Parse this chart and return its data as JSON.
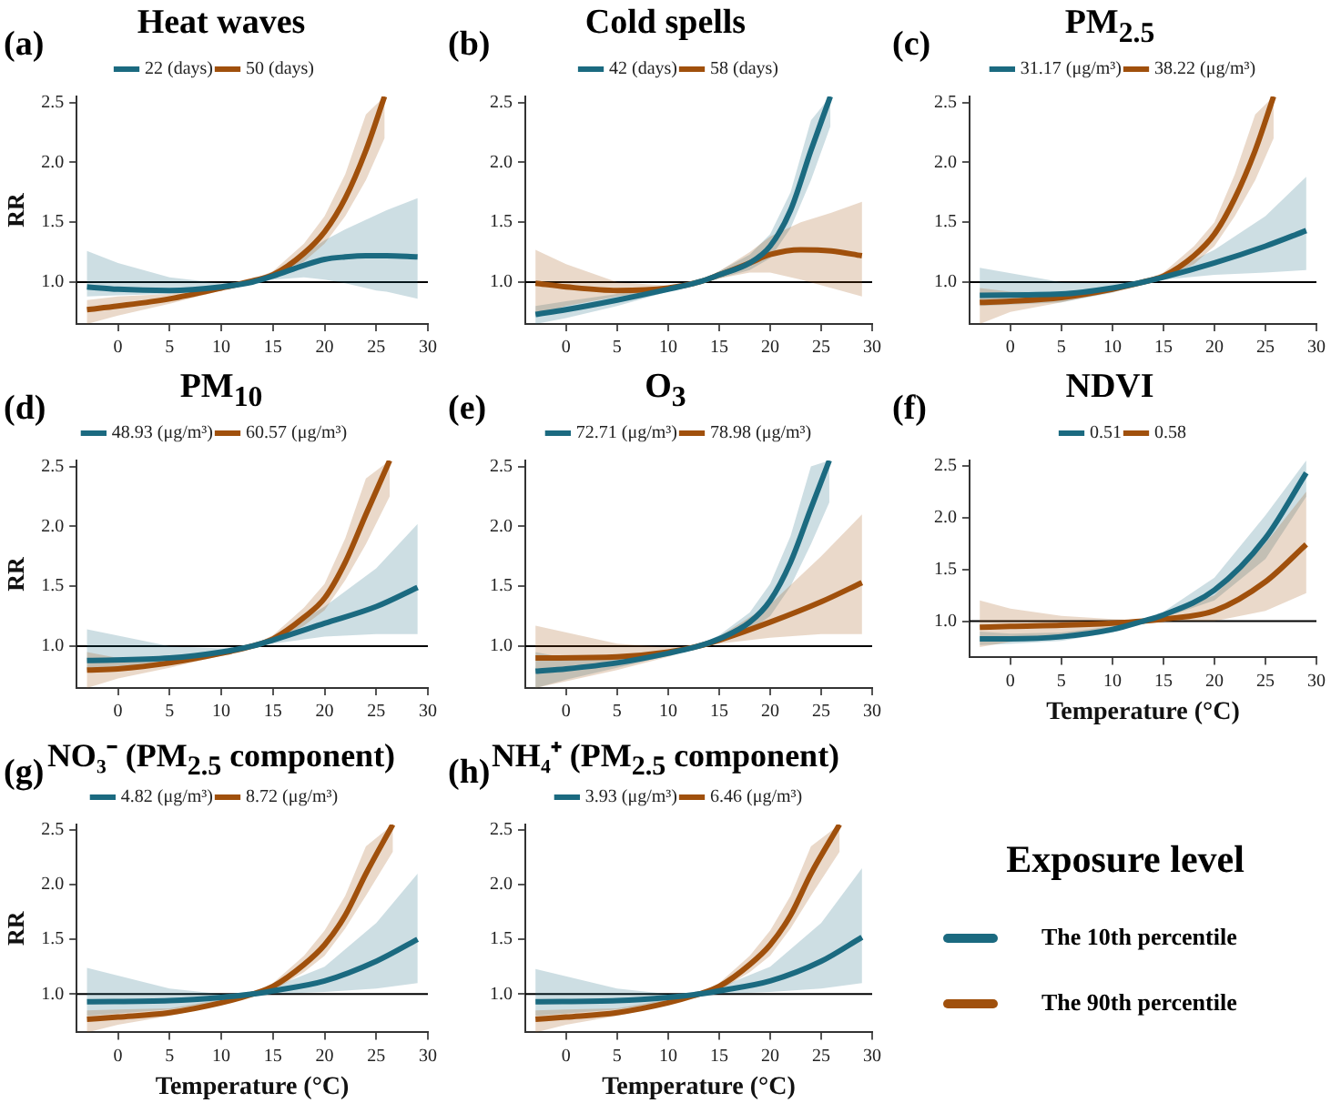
{
  "chart_data": [
    {
      "type": "line",
      "title": "Heat waves",
      "annotations": [
        "(a)"
      ],
      "ylabel": "RR",
      "xlim": [
        -4,
        30
      ],
      "xticks": [
        0,
        5,
        10,
        15,
        20,
        25,
        30
      ],
      "ylim": [
        0.65,
        2.55
      ],
      "yticks": [
        {
          "value": 1,
          "label": "1.0"
        },
        {
          "value": 1.5,
          "label": "1.5"
        },
        {
          "value": 2,
          "label": "2.0"
        },
        {
          "value": 2.5,
          "label": "2.5"
        }
      ],
      "ref_lines": [
        {
          "axis": "y",
          "value": 1
        }
      ],
      "legend": "top",
      "series": [
        {
          "name": "22 (days)",
          "color": "#1b6a80",
          "x": [
            -3,
            0,
            5,
            10,
            13,
            15,
            18,
            20,
            22,
            24,
            25,
            26,
            29
          ],
          "values": [
            0.96,
            0.94,
            0.93,
            0.96,
            1.0,
            1.05,
            1.14,
            1.19,
            1.21,
            1.22,
            1.22,
            1.22,
            1.21
          ],
          "lower": [
            0.88,
            0.89,
            0.9,
            0.94,
            0.99,
            1.02,
            1.04,
            1.02,
            0.99,
            0.95,
            0.93,
            0.92,
            0.86
          ],
          "upper": [
            1.26,
            1.16,
            1.04,
            0.99,
            1.01,
            1.08,
            1.23,
            1.35,
            1.44,
            1.52,
            1.56,
            1.6,
            1.7
          ]
        },
        {
          "name": "50 (days)",
          "color": "#a0500c",
          "x": [
            -3,
            0,
            5,
            10,
            13,
            15,
            18,
            20,
            22,
            24,
            25.8
          ],
          "values": [
            0.77,
            0.8,
            0.86,
            0.95,
            1.01,
            1.06,
            1.24,
            1.42,
            1.7,
            2.1,
            2.55
          ],
          "lower": [
            0.65,
            0.72,
            0.82,
            0.93,
            1.0,
            1.04,
            1.17,
            1.32,
            1.55,
            1.85,
            2.2
          ],
          "upper": [
            0.85,
            0.88,
            0.9,
            0.97,
            1.02,
            1.09,
            1.32,
            1.55,
            1.9,
            2.4,
            2.55
          ]
        }
      ]
    },
    {
      "type": "line",
      "title": "Cold spells",
      "annotations": [
        "(b)"
      ],
      "xlim": [
        -4,
        30
      ],
      "xticks": [
        0,
        5,
        10,
        15,
        20,
        25,
        30
      ],
      "ylim": [
        0.65,
        2.55
      ],
      "yticks": [
        {
          "value": 1,
          "label": "1.0"
        },
        {
          "value": 1.5,
          "label": "1.5"
        },
        {
          "value": 2,
          "label": "2.0"
        },
        {
          "value": 2.5,
          "label": "2.5"
        }
      ],
      "ref_lines": [
        {
          "axis": "y",
          "value": 1
        }
      ],
      "legend": "top",
      "series": [
        {
          "name": "42 (days)",
          "color": "#1b6a80",
          "x": [
            -3,
            0,
            5,
            10,
            13,
            15,
            18,
            20,
            22,
            24,
            25.9
          ],
          "values": [
            0.73,
            0.77,
            0.85,
            0.94,
            1.0,
            1.06,
            1.16,
            1.3,
            1.6,
            2.1,
            2.55
          ],
          "lower": [
            0.65,
            0.7,
            0.8,
            0.92,
            0.99,
            1.03,
            1.1,
            1.2,
            1.45,
            1.85,
            2.3
          ],
          "upper": [
            0.8,
            0.84,
            0.9,
            0.96,
            1.01,
            1.09,
            1.23,
            1.4,
            1.75,
            2.35,
            2.55
          ]
        },
        {
          "name": "58 (days)",
          "color": "#a0500c",
          "x": [
            -3,
            0,
            5,
            10,
            13,
            15,
            18,
            20,
            23,
            26,
            29
          ],
          "values": [
            0.99,
            0.96,
            0.93,
            0.95,
            1.0,
            1.06,
            1.16,
            1.23,
            1.27,
            1.26,
            1.22
          ],
          "lower": [
            0.72,
            0.8,
            0.88,
            0.93,
            0.99,
            1.03,
            1.08,
            1.08,
            1.02,
            0.95,
            0.88
          ],
          "upper": [
            1.27,
            1.15,
            1.0,
            0.97,
            1.01,
            1.09,
            1.25,
            1.38,
            1.5,
            1.58,
            1.67
          ]
        }
      ]
    },
    {
      "type": "line",
      "title": "PM$_{2.5}$",
      "annotations": [
        "(c)"
      ],
      "xlim": [
        -4,
        30
      ],
      "xticks": [
        0,
        5,
        10,
        15,
        20,
        25,
        30
      ],
      "ylim": [
        0.65,
        2.55
      ],
      "yticks": [
        {
          "value": 1,
          "label": "1.0"
        },
        {
          "value": 1.5,
          "label": "1.5"
        },
        {
          "value": 2,
          "label": "2.0"
        },
        {
          "value": 2.5,
          "label": "2.5"
        }
      ],
      "ref_lines": [
        {
          "axis": "y",
          "value": 1
        }
      ],
      "legend": "top",
      "series": [
        {
          "name": "31.17 (μg/m³)",
          "color": "#1b6a80",
          "x": [
            -3,
            5,
            10,
            13,
            15,
            20,
            25,
            29
          ],
          "values": [
            0.89,
            0.9,
            0.95,
            1.0,
            1.04,
            1.16,
            1.3,
            1.43
          ],
          "lower": [
            0.8,
            0.83,
            0.91,
            0.99,
            1.02,
            1.06,
            1.08,
            1.1
          ],
          "upper": [
            1.12,
            1.0,
            0.99,
            1.01,
            1.06,
            1.27,
            1.55,
            1.88
          ]
        },
        {
          "name": "38.22 (μg/m³)",
          "color": "#a0500c",
          "x": [
            -3,
            0,
            5,
            10,
            13,
            15,
            18,
            20,
            22,
            24,
            25.8
          ],
          "values": [
            0.83,
            0.84,
            0.87,
            0.94,
            1.0,
            1.05,
            1.22,
            1.4,
            1.7,
            2.1,
            2.55
          ],
          "lower": [
            0.65,
            0.75,
            0.83,
            0.92,
            0.99,
            1.02,
            1.15,
            1.3,
            1.55,
            1.85,
            2.2
          ],
          "upper": [
            0.95,
            0.92,
            0.91,
            0.96,
            1.01,
            1.08,
            1.3,
            1.5,
            1.9,
            2.4,
            2.55
          ]
        }
      ]
    },
    {
      "type": "line",
      "title": "PM$_{10}$",
      "annotations": [
        "(d)"
      ],
      "ylabel": "RR",
      "xlim": [
        -4,
        30
      ],
      "xticks": [
        0,
        5,
        10,
        15,
        20,
        25,
        30
      ],
      "ylim": [
        0.65,
        2.55
      ],
      "yticks": [
        {
          "value": 1,
          "label": "1.0"
        },
        {
          "value": 1.5,
          "label": "1.5"
        },
        {
          "value": 2,
          "label": "2.0"
        },
        {
          "value": 2.5,
          "label": "2.5"
        }
      ],
      "ref_lines": [
        {
          "axis": "y",
          "value": 1
        }
      ],
      "legend": "top",
      "series": [
        {
          "name": "48.93 (μg/m³)",
          "color": "#1b6a80",
          "x": [
            -3,
            5,
            10,
            13,
            15,
            20,
            25,
            29
          ],
          "values": [
            0.88,
            0.9,
            0.95,
            1.0,
            1.05,
            1.19,
            1.33,
            1.49
          ],
          "lower": [
            0.8,
            0.84,
            0.92,
            0.99,
            1.02,
            1.08,
            1.1,
            1.1
          ],
          "upper": [
            1.14,
            1.0,
            0.98,
            1.01,
            1.07,
            1.33,
            1.65,
            2.02
          ]
        },
        {
          "name": "60.57 (μg/m³)",
          "color": "#a0500c",
          "x": [
            -3,
            0,
            5,
            10,
            13,
            15,
            18,
            20,
            22,
            24,
            26.3
          ],
          "values": [
            0.8,
            0.81,
            0.86,
            0.94,
            1.0,
            1.06,
            1.24,
            1.4,
            1.7,
            2.1,
            2.55
          ],
          "lower": [
            0.65,
            0.73,
            0.82,
            0.92,
            0.99,
            1.03,
            1.17,
            1.3,
            1.55,
            1.85,
            2.25
          ],
          "upper": [
            0.95,
            0.9,
            0.9,
            0.96,
            1.01,
            1.09,
            1.32,
            1.52,
            1.9,
            2.4,
            2.55
          ]
        }
      ]
    },
    {
      "type": "line",
      "title": "O$_{3}$",
      "annotations": [
        "(e)"
      ],
      "xlim": [
        -4,
        30
      ],
      "xticks": [
        0,
        5,
        10,
        15,
        20,
        25,
        30
      ],
      "ylim": [
        0.65,
        2.55
      ],
      "yticks": [
        {
          "value": 1,
          "label": "1.0"
        },
        {
          "value": 1.5,
          "label": "1.5"
        },
        {
          "value": 2,
          "label": "2.0"
        },
        {
          "value": 2.5,
          "label": "2.5"
        }
      ],
      "ref_lines": [
        {
          "axis": "y",
          "value": 1
        }
      ],
      "legend": "top",
      "series": [
        {
          "name": "72.71 (μg/m³)",
          "color": "#1b6a80",
          "x": [
            -3,
            0,
            5,
            10,
            13,
            15,
            18,
            20,
            22,
            24,
            25.8
          ],
          "values": [
            0.79,
            0.81,
            0.86,
            0.94,
            1.0,
            1.06,
            1.2,
            1.38,
            1.7,
            2.15,
            2.55
          ],
          "lower": [
            0.65,
            0.72,
            0.82,
            0.92,
            0.99,
            1.03,
            1.13,
            1.25,
            1.5,
            1.85,
            2.2
          ],
          "upper": [
            0.95,
            0.9,
            0.9,
            0.96,
            1.01,
            1.09,
            1.28,
            1.52,
            1.92,
            2.5,
            2.55
          ]
        },
        {
          "name": "78.98 (μg/m³)",
          "color": "#a0500c",
          "x": [
            -3,
            5,
            10,
            13,
            15,
            20,
            25,
            29
          ],
          "values": [
            0.9,
            0.91,
            0.95,
            1.0,
            1.05,
            1.2,
            1.37,
            1.53
          ],
          "lower": [
            0.65,
            0.8,
            0.91,
            0.99,
            1.02,
            1.07,
            1.1,
            1.1
          ],
          "upper": [
            1.17,
            1.02,
            0.99,
            1.01,
            1.08,
            1.35,
            1.75,
            2.1
          ]
        }
      ]
    },
    {
      "type": "line",
      "title": "NDVI",
      "annotations": [
        "(f)"
      ],
      "xlabel": "Temperature (°C)",
      "xlim": [
        -4,
        30
      ],
      "xticks": [
        0,
        5,
        10,
        15,
        20,
        25,
        30
      ],
      "ylim": [
        0.65,
        2.55
      ],
      "yticks": [
        {
          "value": 1,
          "label": "1.0"
        },
        {
          "value": 1.5,
          "label": "1.5"
        },
        {
          "value": 2,
          "label": "2.0"
        },
        {
          "value": 2.5,
          "label": "2.5"
        }
      ],
      "ref_lines": [
        {
          "axis": "y",
          "value": 1
        }
      ],
      "legend": "top",
      "series": [
        {
          "name": "0.51",
          "color": "#1b6a80",
          "x": [
            -3,
            0,
            5,
            10,
            13,
            15,
            20,
            25,
            29
          ],
          "values": [
            0.83,
            0.83,
            0.85,
            0.92,
            1.0,
            1.06,
            1.3,
            1.8,
            2.43
          ],
          "lower": [
            0.77,
            0.78,
            0.81,
            0.89,
            0.99,
            1.03,
            1.2,
            1.6,
            2.2
          ],
          "upper": [
            0.9,
            0.88,
            0.89,
            0.95,
            1.01,
            1.09,
            1.42,
            2.02,
            2.55
          ]
        },
        {
          "name": "0.58",
          "color": "#a0500c",
          "x": [
            -3,
            0,
            5,
            10,
            13,
            15,
            20,
            25,
            29
          ],
          "values": [
            0.94,
            0.95,
            0.96,
            0.98,
            1.0,
            1.02,
            1.1,
            1.38,
            1.74
          ],
          "lower": [
            0.75,
            0.8,
            0.86,
            0.94,
            0.99,
            1.0,
            1.0,
            1.1,
            1.27
          ],
          "upper": [
            1.2,
            1.12,
            1.05,
            1.02,
            1.01,
            1.05,
            1.25,
            1.75,
            2.25
          ]
        }
      ]
    },
    {
      "type": "line",
      "title": "NO₃⁻ (PM$_{2.5}$ component)",
      "annotations": [
        "(g)"
      ],
      "ylabel": "RR",
      "xlabel": "Temperature (°C)",
      "xlim": [
        -4,
        30
      ],
      "xticks": [
        0,
        5,
        10,
        15,
        20,
        25,
        30
      ],
      "ylim": [
        0.65,
        2.55
      ],
      "yticks": [
        {
          "value": 1,
          "label": "1.0"
        },
        {
          "value": 1.5,
          "label": "1.5"
        },
        {
          "value": 2,
          "label": "2.0"
        },
        {
          "value": 2.5,
          "label": "2.5"
        }
      ],
      "ref_lines": [
        {
          "axis": "y",
          "value": 1
        }
      ],
      "legend": "top",
      "series": [
        {
          "name": "4.82 (μg/m³)",
          "color": "#1b6a80",
          "x": [
            -3,
            5,
            10,
            13,
            15,
            20,
            25,
            29
          ],
          "values": [
            0.93,
            0.94,
            0.97,
            1.0,
            1.03,
            1.12,
            1.3,
            1.5
          ],
          "lower": [
            0.8,
            0.86,
            0.93,
            0.99,
            1.0,
            1.02,
            1.05,
            1.1
          ],
          "upper": [
            1.24,
            1.05,
            1.0,
            1.01,
            1.06,
            1.25,
            1.65,
            2.1
          ]
        },
        {
          "name": "8.72 (μg/m³)",
          "color": "#a0500c",
          "x": [
            -3,
            0,
            5,
            10,
            13,
            15,
            18,
            20,
            22,
            24,
            26.6
          ],
          "values": [
            0.77,
            0.79,
            0.83,
            0.92,
            1.0,
            1.07,
            1.27,
            1.45,
            1.72,
            2.1,
            2.55
          ],
          "lower": [
            0.65,
            0.72,
            0.8,
            0.9,
            0.99,
            1.03,
            1.2,
            1.35,
            1.6,
            1.9,
            2.3
          ],
          "upper": [
            0.85,
            0.86,
            0.87,
            0.95,
            1.01,
            1.1,
            1.35,
            1.58,
            1.9,
            2.35,
            2.55
          ]
        }
      ]
    },
    {
      "type": "line",
      "title": "NH₄⁺ (PM$_{2.5}$ component)",
      "annotations": [
        "(h)"
      ],
      "xlabel": "Temperature (°C)",
      "xlim": [
        -4,
        30
      ],
      "xticks": [
        0,
        5,
        10,
        15,
        20,
        25,
        30
      ],
      "ylim": [
        0.65,
        2.55
      ],
      "yticks": [
        {
          "value": 1,
          "label": "1.0"
        },
        {
          "value": 1.5,
          "label": "1.5"
        },
        {
          "value": 2,
          "label": "2.0"
        },
        {
          "value": 2.5,
          "label": "2.5"
        }
      ],
      "ref_lines": [
        {
          "axis": "y",
          "value": 1
        }
      ],
      "legend": "top",
      "series": [
        {
          "name": "3.93 (μg/m³)",
          "color": "#1b6a80",
          "x": [
            -3,
            5,
            10,
            13,
            15,
            20,
            25,
            29
          ],
          "values": [
            0.93,
            0.94,
            0.97,
            1.0,
            1.03,
            1.12,
            1.3,
            1.52
          ],
          "lower": [
            0.8,
            0.86,
            0.93,
            0.99,
            1.0,
            1.02,
            1.05,
            1.1
          ],
          "upper": [
            1.23,
            1.05,
            1.0,
            1.01,
            1.06,
            1.25,
            1.65,
            2.15
          ]
        },
        {
          "name": "6.46 (μg/m³)",
          "color": "#a0500c",
          "x": [
            -3,
            0,
            5,
            10,
            13,
            15,
            18,
            20,
            22,
            24,
            26.8
          ],
          "values": [
            0.77,
            0.79,
            0.83,
            0.92,
            1.0,
            1.07,
            1.27,
            1.45,
            1.72,
            2.1,
            2.55
          ],
          "lower": [
            0.65,
            0.72,
            0.8,
            0.9,
            0.99,
            1.03,
            1.2,
            1.35,
            1.6,
            1.9,
            2.3
          ],
          "upper": [
            0.85,
            0.86,
            0.87,
            0.95,
            1.01,
            1.1,
            1.35,
            1.58,
            1.9,
            2.35,
            2.55
          ]
        }
      ]
    },
    {
      "type": "other",
      "title": "Exposure level",
      "series": [
        {
          "name": "The 10th percentile",
          "color": "#1b6a80"
        },
        {
          "name": "The 90th percentile",
          "color": "#a0500c"
        }
      ]
    }
  ]
}
